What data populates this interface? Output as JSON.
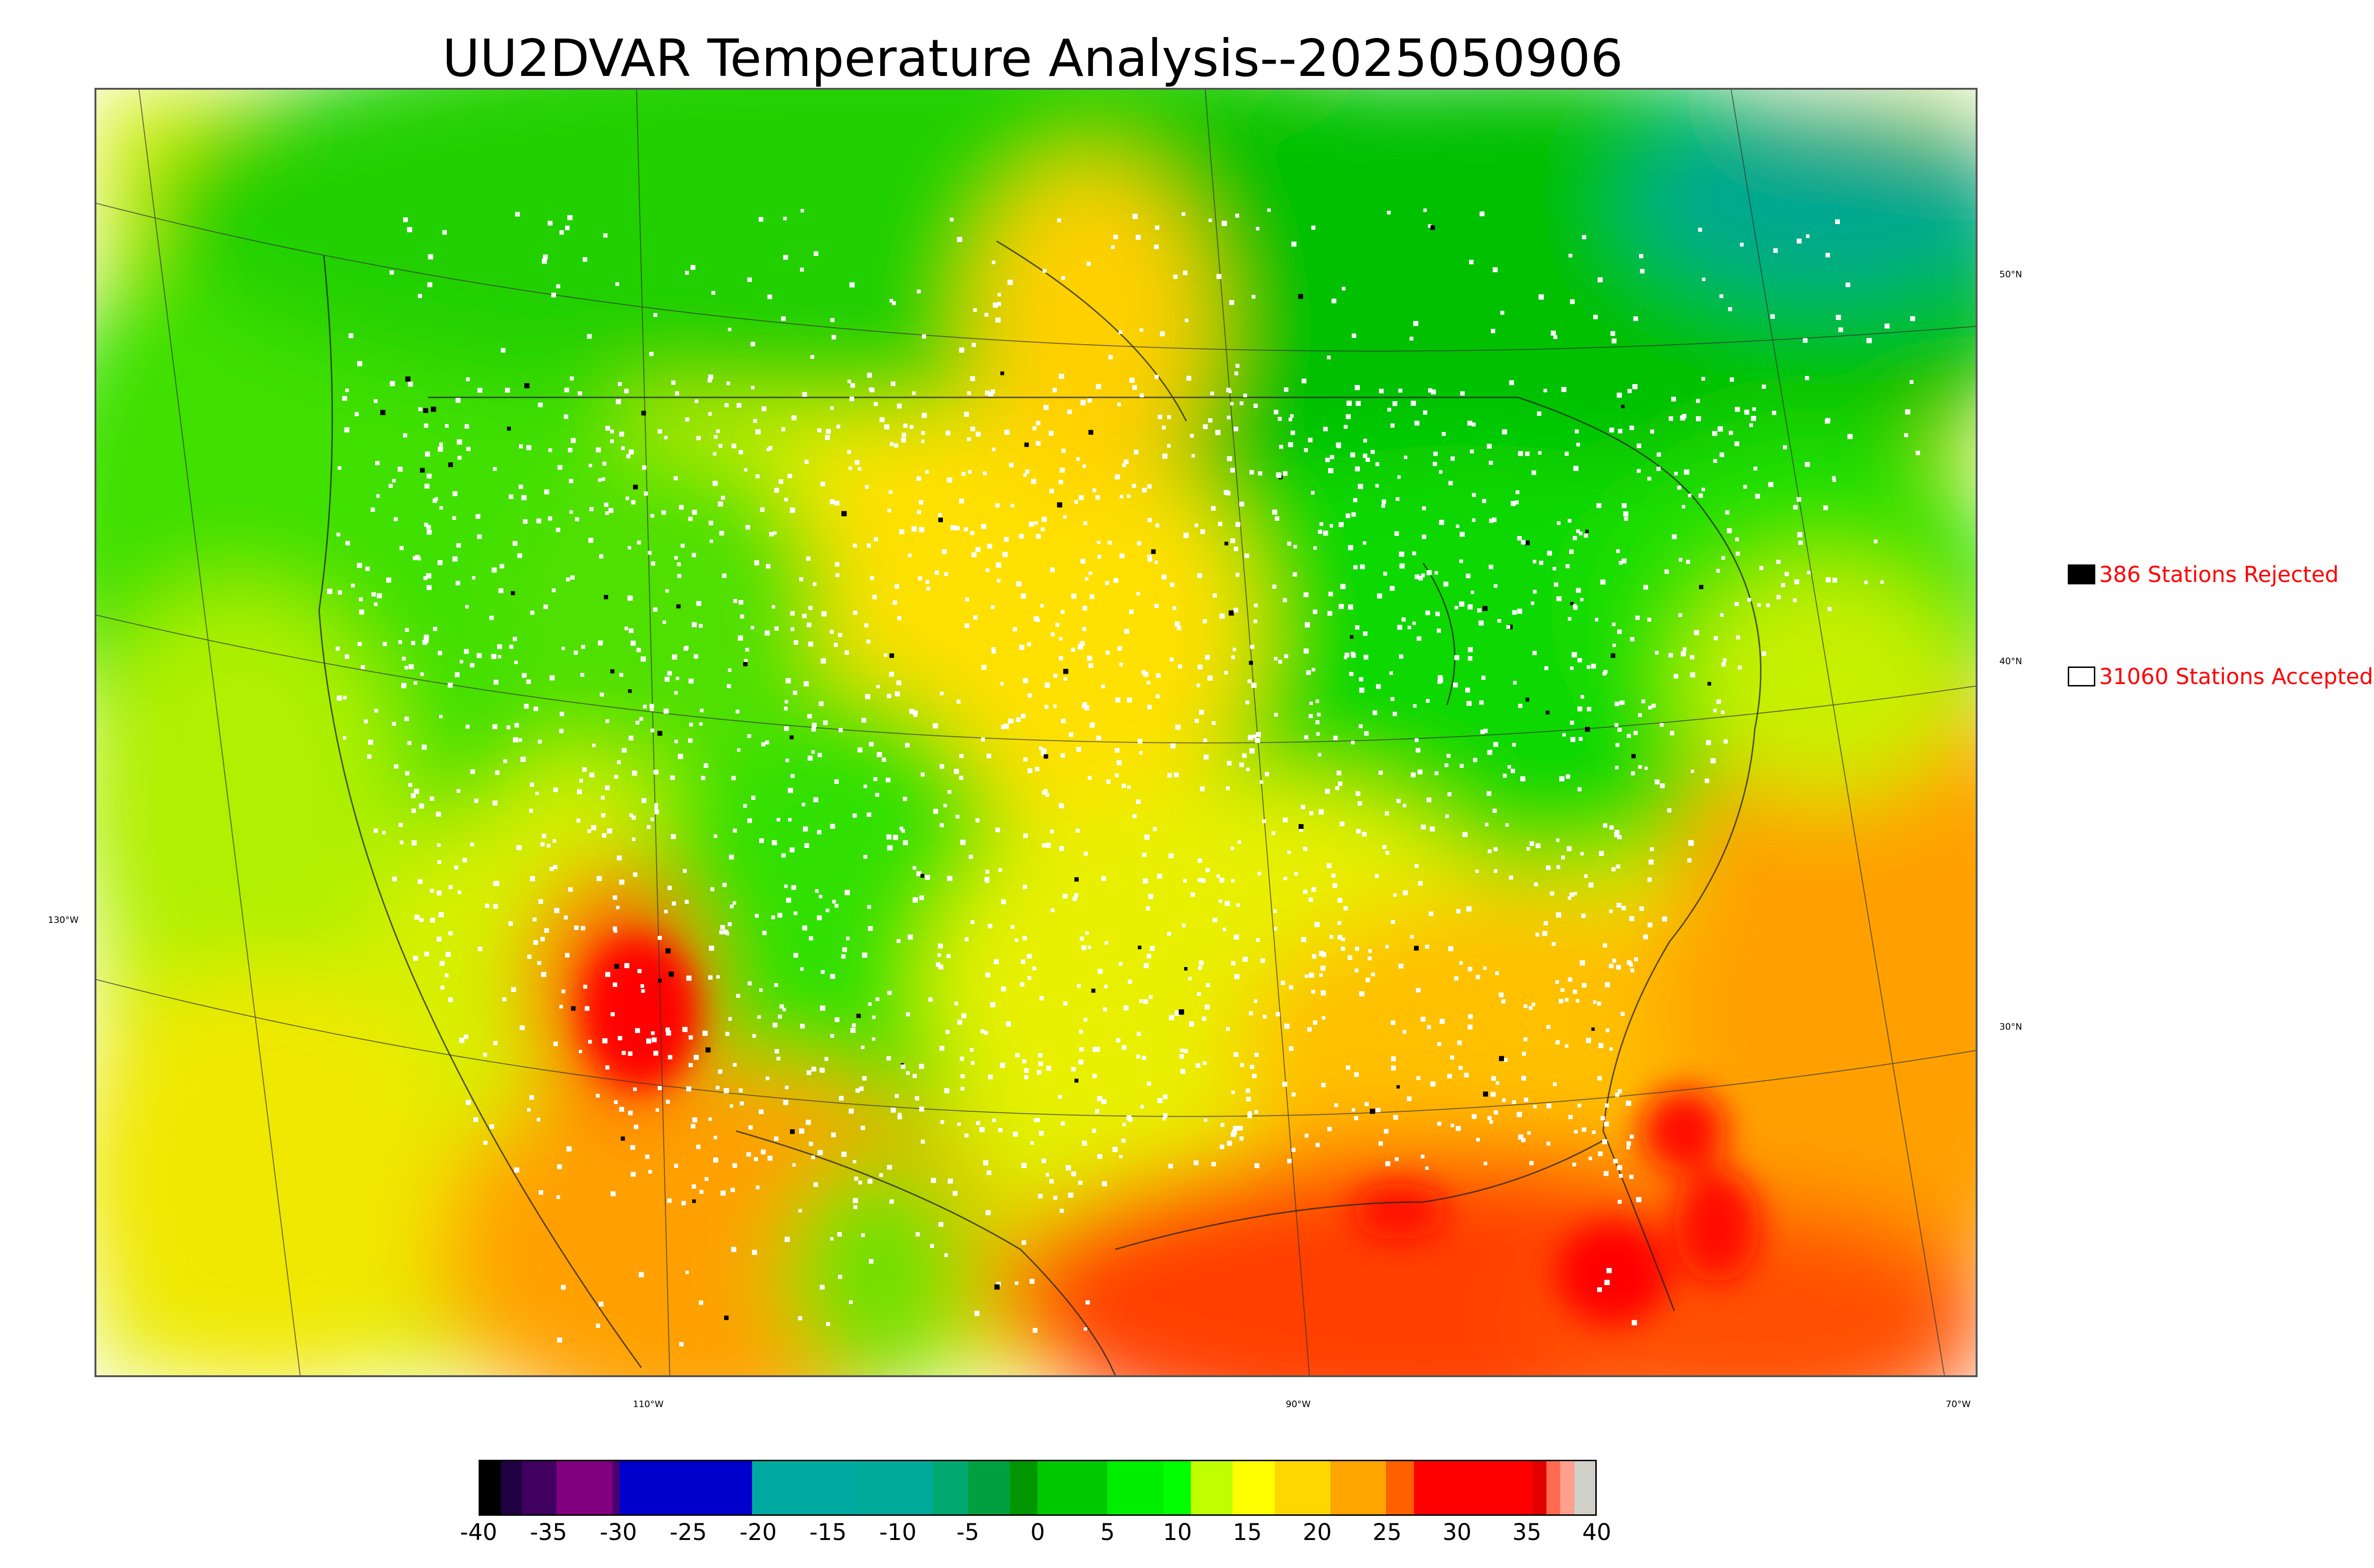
{
  "title": "UU2DVAR Temperature Analysis--2025050906",
  "map": {
    "lat_labels": [
      "50°N",
      "40°N",
      "30°N"
    ],
    "lon_labels": [
      "130°W",
      "110°W",
      "90°W",
      "70°W"
    ]
  },
  "legend": {
    "rejected_label": "386 Stations Rejected",
    "accepted_label": "31060 Stations Accepted",
    "rejected_color": "#000000",
    "accepted_color": "#ffffff",
    "text_color": "#ff0000"
  },
  "colorbar": {
    "ticks": [
      "-40",
      "-35",
      "-30",
      "-25",
      "-20",
      "-15",
      "-10",
      "-5",
      "0",
      "5",
      "10",
      "15",
      "20",
      "25",
      "30",
      "35",
      "40"
    ],
    "min": -40,
    "max": 40,
    "segments": [
      {
        "from": -40,
        "to": -38.5,
        "color": "#000000"
      },
      {
        "from": -38.5,
        "to": -37,
        "color": "#200040"
      },
      {
        "from": -37,
        "to": -34.5,
        "color": "#400060"
      },
      {
        "from": -34.5,
        "to": -30.5,
        "color": "#800080"
      },
      {
        "from": -30.5,
        "to": -30,
        "color": "#4b0072"
      },
      {
        "from": -30,
        "to": -20.5,
        "color": "#0000cd"
      },
      {
        "from": -20.5,
        "to": -13,
        "color": "#00aaa0"
      },
      {
        "from": -13,
        "to": -7.5,
        "color": "#00aa9a"
      },
      {
        "from": -7.5,
        "to": -5,
        "color": "#00a870"
      },
      {
        "from": -5,
        "to": -2,
        "color": "#00a040"
      },
      {
        "from": -2,
        "to": 0,
        "color": "#009600"
      },
      {
        "from": 0,
        "to": 5,
        "color": "#00c800"
      },
      {
        "from": 5,
        "to": 9,
        "color": "#00ee00"
      },
      {
        "from": 9,
        "to": 11,
        "color": "#00ff00"
      },
      {
        "from": 11,
        "to": 14,
        "color": "#bfff00"
      },
      {
        "from": 14,
        "to": 17,
        "color": "#ffff00"
      },
      {
        "from": 17,
        "to": 21,
        "color": "#ffd700"
      },
      {
        "from": 21,
        "to": 25,
        "color": "#ffa500"
      },
      {
        "from": 25,
        "to": 27,
        "color": "#ff6000"
      },
      {
        "from": 27,
        "to": 35.5,
        "color": "#ff0000"
      },
      {
        "from": 35.5,
        "to": 36.5,
        "color": "#e00000"
      },
      {
        "from": 36.5,
        "to": 37.5,
        "color": "#ff6a50"
      },
      {
        "from": 37.5,
        "to": 38.5,
        "color": "#ffa090"
      },
      {
        "from": 38.5,
        "to": 40,
        "color": "#d0d0c8"
      }
    ]
  }
}
